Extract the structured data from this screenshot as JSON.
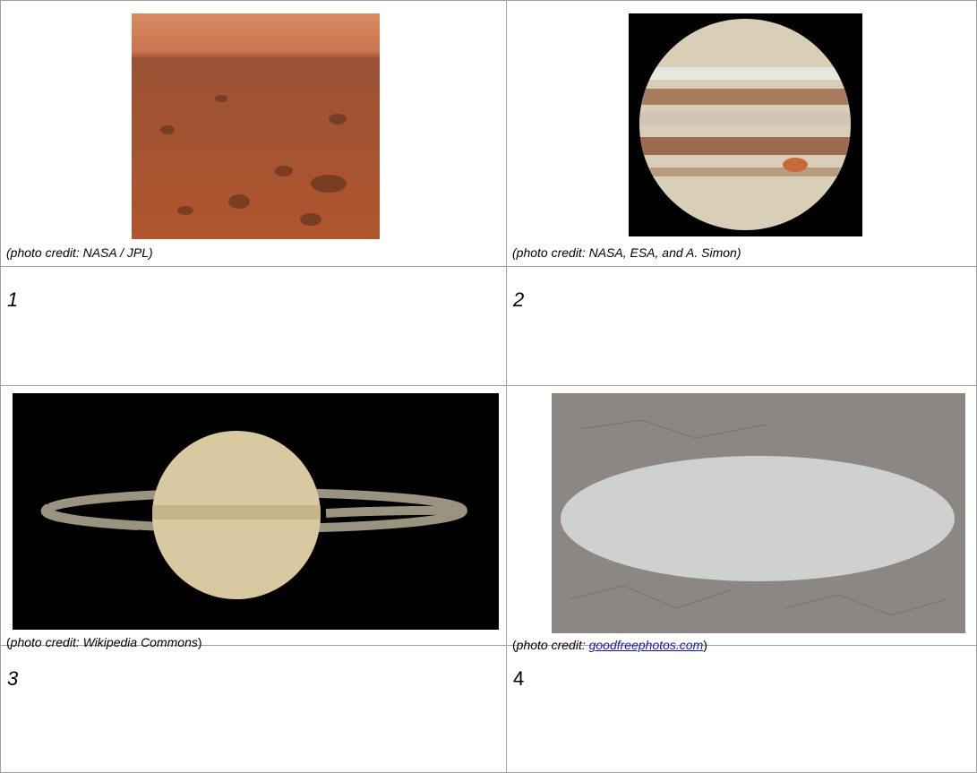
{
  "table": {
    "rows": [
      [
        {
          "caption": [
            "photo credit: NASA / JPL"
          ]
        },
        {
          "caption": [
            "photo credit: NASA, ESA, and A. Simon"
          ]
        }
      ],
      [
        {
          "label": "1"
        },
        {
          "label": "2"
        }
      ],
      [
        {
          "caption": [
            "(",
            "photo credit: Wikipedia Commons",
            ")"
          ]
        },
        {
          "caption": [
            "(",
            "photo credit: ",
            "goodfreephotos.com",
            ")"
          ]
        }
      ],
      [
        {
          "label": "3"
        },
        {
          "label": "4"
        }
      ]
    ],
    "captions_full": {
      "0.0": "(photo credit: NASA / JPL)",
      "0.1": "(photo credit: NASA, ESA, and A. Simon)"
    }
  }
}
